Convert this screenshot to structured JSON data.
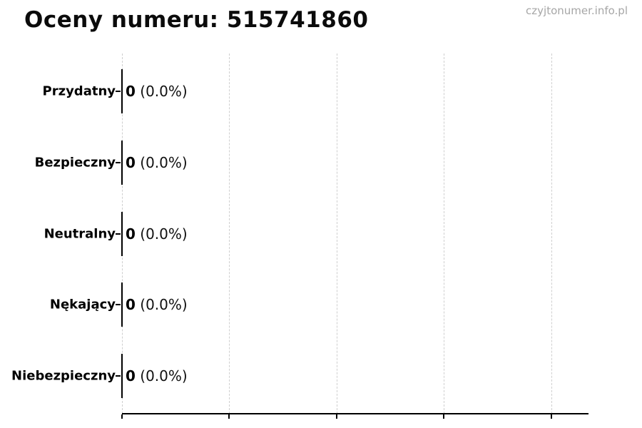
{
  "header": {
    "title": "Oceny numeru: 515741860",
    "watermark": "czyjtonumer.info.pl"
  },
  "chart_data": {
    "type": "bar",
    "orientation": "horizontal",
    "title": "Oceny numeru: 515741860",
    "categories": [
      "Przydatny",
      "Bezpieczny",
      "Neutralny",
      "Nękający",
      "Niebezpieczny"
    ],
    "values": [
      0,
      0,
      0,
      0,
      0
    ],
    "percent_labels": [
      "0.0%",
      "0.0%",
      "0.0%",
      "0.0%",
      "0.0%"
    ],
    "bar_annotation_format": "value (percent)",
    "xlim": [
      0,
      4.34
    ],
    "x_gridline_count": 5,
    "x_tick_labels_visible": false,
    "grid": "vertical-dashed",
    "legend": "none",
    "bar_color": "#000000"
  },
  "rows": [
    {
      "label": "Przydatny",
      "value": "0",
      "percent": " (0.0%)"
    },
    {
      "label": "Bezpieczny",
      "value": "0",
      "percent": " (0.0%)"
    },
    {
      "label": "Neutralny",
      "value": "0",
      "percent": " (0.0%)"
    },
    {
      "label": "Nękający",
      "value": "0",
      "percent": " (0.0%)"
    },
    {
      "label": "Niebezpieczny",
      "value": "0",
      "percent": " (0.0%)"
    }
  ],
  "colors": {
    "text": "#000000",
    "gridline": "#cfcfcf",
    "axis": "#000000",
    "watermark": "#a6a6a6",
    "background": "#ffffff"
  }
}
